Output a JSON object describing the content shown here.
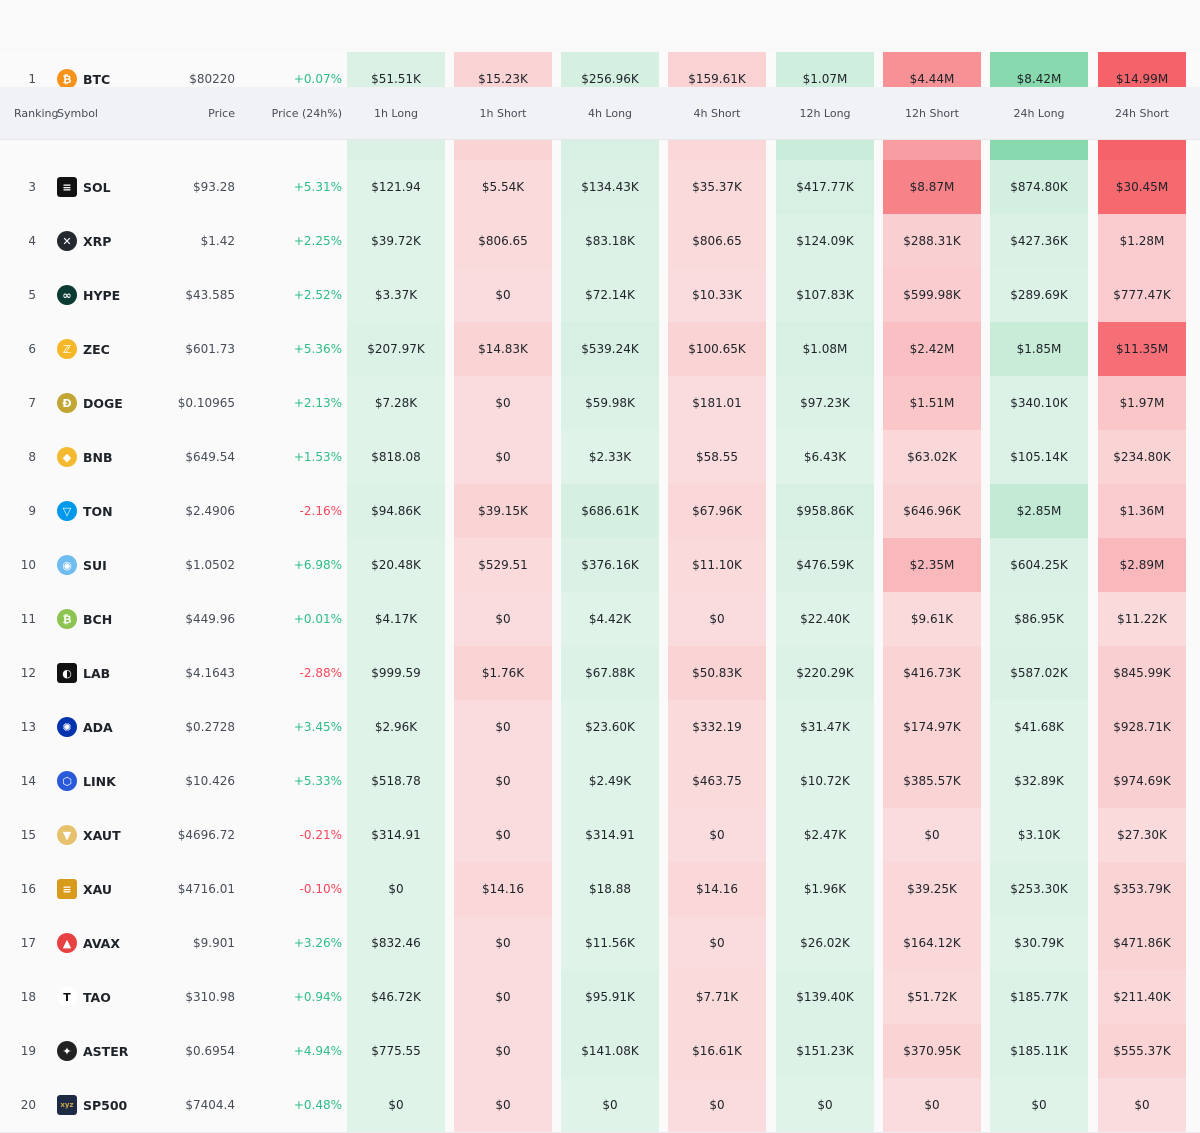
{
  "columns": {
    "rank": "Ranking",
    "symbol": "Symbol",
    "price": "Price",
    "change": "Price (24h%)",
    "h1_long": "1h Long",
    "h1_short": "1h Short",
    "h4_long": "4h Long",
    "h4_short": "4h Short",
    "h12_long": "12h Long",
    "h12_short": "12h Short",
    "h24_long": "24h Long",
    "h24_short": "24h Short"
  },
  "colors": {
    "long": "#2ebd85",
    "short": "#f6465d",
    "up": "#2ebd85",
    "down": "#f6465d"
  },
  "rows": [
    {
      "rank": "1",
      "symbol": "BTC",
      "icon": "bitcoin-icon",
      "icon_glyph": "₿",
      "icon_color": "#f7931a",
      "price": "$80220",
      "change": "+0.07%",
      "dir": "up",
      "cells": [
        "$51.51K",
        "$15.23K",
        "$256.96K",
        "$159.61K",
        "$1.07M",
        "$4.44M",
        "$8.42M",
        "$14.99M"
      ],
      "levels": [
        0.12,
        0.15,
        0.18,
        0.16,
        0.22,
        0.65,
        0.9,
        1.0
      ]
    },
    {
      "rank": "",
      "symbol": "",
      "icon": "",
      "icon_glyph": "",
      "icon_color": "",
      "price": "",
      "change": "",
      "dir": "up",
      "cells": [
        "",
        "",
        "",
        "",
        "",
        "",
        "",
        ""
      ],
      "levels": [
        0.12,
        0.15,
        0.15,
        0.12,
        0.28,
        0.55,
        0.9,
        1.0
      ]
    },
    {
      "rank": "3",
      "symbol": "SOL",
      "icon": "solana-icon",
      "icon_glyph": "≡",
      "icon_color": "#111111",
      "price": "$93.28",
      "change": "+5.31%",
      "dir": "up",
      "cells": [
        "$121.94",
        "$5.54K",
        "$134.43K",
        "$35.37K",
        "$417.77K",
        "$8.87M",
        "$874.80K",
        "$30.45M"
      ],
      "levels": [
        0.08,
        0.1,
        0.12,
        0.1,
        0.15,
        0.75,
        0.2,
        0.95
      ]
    },
    {
      "rank": "4",
      "symbol": "XRP",
      "icon": "xrp-icon",
      "icon_glyph": "✕",
      "icon_color": "#23292f",
      "price": "$1.42",
      "change": "+2.25%",
      "dir": "up",
      "cells": [
        "$39.72K",
        "$806.65",
        "$83.18K",
        "$806.65",
        "$124.09K",
        "$288.31K",
        "$427.36K",
        "$1.28M"
      ],
      "levels": [
        0.08,
        0.1,
        0.1,
        0.1,
        0.1,
        0.18,
        0.12,
        0.2
      ]
    },
    {
      "rank": "5",
      "symbol": "HYPE",
      "icon": "hyperliquid-icon",
      "icon_glyph": "∞",
      "icon_color": "#0b3b33",
      "price": "$43.585",
      "change": "+2.52%",
      "dir": "up",
      "cells": [
        "$3.37K",
        "$0",
        "$72.14K",
        "$10.33K",
        "$107.83K",
        "$599.98K",
        "$289.69K",
        "$777.47K"
      ],
      "levels": [
        0.08,
        0.08,
        0.1,
        0.08,
        0.1,
        0.2,
        0.1,
        0.2
      ]
    },
    {
      "rank": "6",
      "symbol": "ZEC",
      "icon": "zcash-icon",
      "icon_glyph": "ℤ",
      "icon_color": "#f4b728",
      "price": "$601.73",
      "change": "+5.36%",
      "dir": "up",
      "cells": [
        "$207.97K",
        "$14.83K",
        "$539.24K",
        "$100.65K",
        "$1.08M",
        "$2.42M",
        "$1.85M",
        "$11.35M"
      ],
      "levels": [
        0.1,
        0.15,
        0.15,
        0.15,
        0.15,
        0.3,
        0.3,
        0.9
      ]
    },
    {
      "rank": "7",
      "symbol": "DOGE",
      "icon": "dogecoin-icon",
      "icon_glyph": "Ð",
      "icon_color": "#c2a633",
      "price": "$0.10965",
      "change": "+2.13%",
      "dir": "up",
      "cells": [
        "$7.28K",
        "$0",
        "$59.98K",
        "$181.01",
        "$97.23K",
        "$1.51M",
        "$340.10K",
        "$1.97M"
      ],
      "levels": [
        0.08,
        0.08,
        0.1,
        0.08,
        0.1,
        0.25,
        0.1,
        0.25
      ]
    },
    {
      "rank": "8",
      "symbol": "BNB",
      "icon": "bnb-icon",
      "icon_glyph": "◆",
      "icon_color": "#f3ba2f",
      "price": "$649.54",
      "change": "+1.53%",
      "dir": "up",
      "cells": [
        "$818.08",
        "$0",
        "$2.33K",
        "$58.55",
        "$6.43K",
        "$63.02K",
        "$105.14K",
        "$234.80K"
      ],
      "levels": [
        0.08,
        0.08,
        0.08,
        0.08,
        0.08,
        0.12,
        0.1,
        0.15
      ]
    },
    {
      "rank": "9",
      "symbol": "TON",
      "icon": "toncoin-icon",
      "icon_glyph": "▽",
      "icon_color": "#0098ea",
      "price": "$2.4906",
      "change": "-2.16%",
      "dir": "down",
      "cells": [
        "$94.86K",
        "$39.15K",
        "$686.61K",
        "$67.96K",
        "$958.86K",
        "$646.96K",
        "$2.85M",
        "$1.36M"
      ],
      "levels": [
        0.1,
        0.15,
        0.18,
        0.12,
        0.15,
        0.15,
        0.35,
        0.2
      ]
    },
    {
      "rank": "10",
      "symbol": "SUI",
      "icon": "sui-icon",
      "icon_glyph": "◉",
      "icon_color": "#6fbcf0",
      "price": "$1.0502",
      "change": "+6.98%",
      "dir": "up",
      "cells": [
        "$20.48K",
        "$529.51",
        "$376.16K",
        "$11.10K",
        "$476.59K",
        "$2.35M",
        "$604.25K",
        "$2.89M"
      ],
      "levels": [
        0.08,
        0.1,
        0.12,
        0.1,
        0.12,
        0.35,
        0.12,
        0.35
      ]
    },
    {
      "rank": "11",
      "symbol": "BCH",
      "icon": "bitcoin-cash-icon",
      "icon_glyph": "₿",
      "icon_color": "#8dc351",
      "price": "$449.96",
      "change": "+0.01%",
      "dir": "up",
      "cells": [
        "$4.17K",
        "$0",
        "$4.42K",
        "$0",
        "$22.40K",
        "$9.61K",
        "$86.95K",
        "$11.22K"
      ],
      "levels": [
        0.08,
        0.08,
        0.08,
        0.08,
        0.08,
        0.1,
        0.1,
        0.1
      ]
    },
    {
      "rank": "12",
      "symbol": "LAB",
      "icon": "lab-icon",
      "icon_glyph": "◐",
      "icon_color": "#111111",
      "price": "$4.1643",
      "change": "-2.88%",
      "dir": "down",
      "cells": [
        "$999.59",
        "$1.76K",
        "$67.88K",
        "$50.83K",
        "$220.29K",
        "$416.73K",
        "$587.02K",
        "$845.99K"
      ],
      "levels": [
        0.08,
        0.15,
        0.1,
        0.15,
        0.1,
        0.15,
        0.12,
        0.18
      ]
    },
    {
      "rank": "13",
      "symbol": "ADA",
      "icon": "cardano-icon",
      "icon_glyph": "✺",
      "icon_color": "#0033ad",
      "price": "$0.2728",
      "change": "+3.45%",
      "dir": "up",
      "cells": [
        "$2.96K",
        "$0",
        "$23.60K",
        "$332.19",
        "$31.47K",
        "$174.97K",
        "$41.68K",
        "$928.71K"
      ],
      "levels": [
        0.08,
        0.08,
        0.08,
        0.1,
        0.08,
        0.15,
        0.08,
        0.18
      ]
    },
    {
      "rank": "14",
      "symbol": "LINK",
      "icon": "chainlink-icon",
      "icon_glyph": "⬡",
      "icon_color": "#2a5ada",
      "price": "$10.426",
      "change": "+5.33%",
      "dir": "up",
      "cells": [
        "$518.78",
        "$0",
        "$2.49K",
        "$463.75",
        "$10.72K",
        "$385.57K",
        "$32.89K",
        "$974.69K"
      ],
      "levels": [
        0.08,
        0.08,
        0.08,
        0.1,
        0.08,
        0.15,
        0.08,
        0.18
      ]
    },
    {
      "rank": "15",
      "symbol": "XAUT",
      "icon": "tether-gold-icon",
      "icon_glyph": "▼",
      "icon_color": "#e6c26e",
      "price": "$4696.72",
      "change": "-0.21%",
      "dir": "down",
      "cells": [
        "$314.91",
        "$0",
        "$314.91",
        "$0",
        "$2.47K",
        "$0",
        "$3.10K",
        "$27.30K"
      ],
      "levels": [
        0.08,
        0.08,
        0.08,
        0.08,
        0.08,
        0.08,
        0.08,
        0.1
      ]
    },
    {
      "rank": "16",
      "symbol": "XAU",
      "icon": "gold-icon",
      "icon_glyph": "≡",
      "icon_color": "#d89a1b",
      "price": "$4716.01",
      "change": "-0.10%",
      "dir": "down",
      "cells": [
        "$0",
        "$14.16",
        "$18.88",
        "$14.16",
        "$1.96K",
        "$39.25K",
        "$253.30K",
        "$353.79K"
      ],
      "levels": [
        0.08,
        0.12,
        0.08,
        0.12,
        0.08,
        0.12,
        0.1,
        0.15
      ]
    },
    {
      "rank": "17",
      "symbol": "AVAX",
      "icon": "avalanche-icon",
      "icon_glyph": "▲",
      "icon_color": "#e84142",
      "price": "$9.901",
      "change": "+3.26%",
      "dir": "up",
      "cells": [
        "$832.46",
        "$0",
        "$11.56K",
        "$0",
        "$26.02K",
        "$164.12K",
        "$30.79K",
        "$471.86K"
      ],
      "levels": [
        0.08,
        0.08,
        0.08,
        0.08,
        0.08,
        0.12,
        0.08,
        0.15
      ]
    },
    {
      "rank": "18",
      "symbol": "TAO",
      "icon": "bittensor-icon",
      "icon_glyph": "T",
      "icon_color": "#ffffff",
      "price": "$310.98",
      "change": "+0.94%",
      "dir": "up",
      "cells": [
        "$46.72K",
        "$0",
        "$95.91K",
        "$7.71K",
        "$139.40K",
        "$51.72K",
        "$185.77K",
        "$211.40K"
      ],
      "levels": [
        0.08,
        0.08,
        0.1,
        0.1,
        0.1,
        0.1,
        0.1,
        0.12
      ]
    },
    {
      "rank": "19",
      "symbol": "ASTER",
      "icon": "aster-icon",
      "icon_glyph": "✦",
      "icon_color": "#222222",
      "price": "$0.6954",
      "change": "+4.94%",
      "dir": "up",
      "cells": [
        "$775.55",
        "$0",
        "$141.08K",
        "$16.61K",
        "$151.23K",
        "$370.95K",
        "$185.11K",
        "$555.37K"
      ],
      "levels": [
        0.08,
        0.08,
        0.1,
        0.1,
        0.1,
        0.15,
        0.1,
        0.15
      ]
    },
    {
      "rank": "20",
      "symbol": "SP500",
      "icon": "sp500-icon",
      "icon_glyph": "xyz",
      "icon_color": "#1f2a44",
      "price": "$7404.4",
      "change": "+0.48%",
      "dir": "up",
      "cells": [
        "$0",
        "$0",
        "$0",
        "$0",
        "$0",
        "$0",
        "$0",
        "$0"
      ],
      "levels": [
        0.08,
        0.08,
        0.08,
        0.08,
        0.08,
        0.08,
        0.08,
        0.08
      ]
    }
  ]
}
